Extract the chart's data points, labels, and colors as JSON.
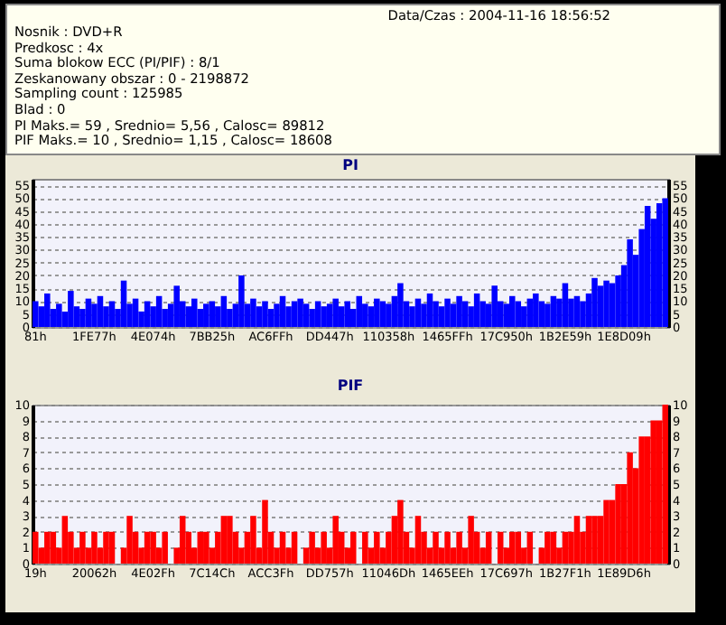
{
  "chart_data": [
    {
      "type": "other",
      "annotations": [
        "Data/Czas : 2004-11-16 18:56:52",
        "Nosnik : DVD+R",
        "Predkosc : 4x",
        "Suma blokow ECC (PI/PIF) : 8/1",
        "Zeskanowany obszar : 0 - 2198872",
        "Sampling count : 125985",
        "Blad : 0",
        "PI Maks.= 59 , Srednio= 5,56 , Calosc= 89812",
        "PIF Maks.= 10 , Srednio= 1,15 , Calosc= 18608"
      ]
    },
    {
      "type": "bar",
      "title": "PI",
      "color": "#0000ff",
      "categories": [
        "81h",
        null,
        null,
        null,
        null,
        null,
        null,
        null,
        null,
        null,
        "1FE77h",
        null,
        null,
        null,
        null,
        null,
        null,
        null,
        null,
        null,
        "4E074h",
        null,
        null,
        null,
        null,
        null,
        null,
        null,
        null,
        null,
        "7BB25h",
        null,
        null,
        null,
        null,
        null,
        null,
        null,
        null,
        null,
        "AC6FFh",
        null,
        null,
        null,
        null,
        null,
        null,
        null,
        null,
        null,
        "DD447h",
        null,
        null,
        null,
        null,
        null,
        null,
        null,
        null,
        null,
        "110358h",
        null,
        null,
        null,
        null,
        null,
        null,
        null,
        null,
        null,
        "1465FFh",
        null,
        null,
        null,
        null,
        null,
        null,
        null,
        null,
        null,
        "17C950h",
        null,
        null,
        null,
        null,
        null,
        null,
        null,
        null,
        null,
        "1B2E59h",
        null,
        null,
        null,
        null,
        null,
        null,
        null,
        null,
        null,
        "1E8D09h",
        null,
        null,
        null,
        null,
        null,
        null,
        null
      ],
      "values": [
        10,
        8,
        13,
        7,
        9,
        6,
        14,
        8,
        7,
        11,
        9,
        12,
        8,
        10,
        7,
        18,
        9,
        11,
        6,
        10,
        8,
        12,
        7,
        9,
        16,
        10,
        8,
        11,
        7,
        9,
        10,
        8,
        12,
        7,
        9,
        20,
        9,
        11,
        8,
        10,
        7,
        9,
        12,
        8,
        10,
        11,
        9,
        7,
        10,
        8,
        9,
        11,
        8,
        10,
        7,
        12,
        9,
        8,
        11,
        10,
        9,
        12,
        17,
        10,
        8,
        11,
        9,
        13,
        10,
        8,
        11,
        9,
        12,
        10,
        8,
        13,
        10,
        9,
        16,
        10,
        9,
        12,
        10,
        8,
        11,
        13,
        10,
        9,
        12,
        11,
        17,
        11,
        12,
        10,
        13,
        19,
        16,
        18,
        17,
        20,
        24,
        34,
        28,
        38,
        47,
        42,
        48,
        50
      ],
      "ylim": [
        0,
        57.5
      ],
      "yticks": [
        0,
        5,
        10,
        15,
        20,
        25,
        30,
        35,
        40,
        45,
        50,
        55
      ],
      "y2lim": [
        0,
        57.5
      ],
      "y2ticks": [
        0,
        5,
        10,
        15,
        20,
        25,
        30,
        35,
        40,
        45,
        50,
        55
      ],
      "grid": "y",
      "line_style": "dotted"
    },
    {
      "type": "bar",
      "title": "PIF",
      "color": "#ff0000",
      "categories": [
        "19h",
        null,
        null,
        null,
        null,
        null,
        null,
        null,
        null,
        null,
        "20062h",
        null,
        null,
        null,
        null,
        null,
        null,
        null,
        null,
        null,
        "4E02Fh",
        null,
        null,
        null,
        null,
        null,
        null,
        null,
        null,
        null,
        "7C14Ch",
        null,
        null,
        null,
        null,
        null,
        null,
        null,
        null,
        null,
        "ACC3Fh",
        null,
        null,
        null,
        null,
        null,
        null,
        null,
        null,
        null,
        "DD757h",
        null,
        null,
        null,
        null,
        null,
        null,
        null,
        null,
        null,
        "11046Dh",
        null,
        null,
        null,
        null,
        null,
        null,
        null,
        null,
        null,
        "1465EEh",
        null,
        null,
        null,
        null,
        null,
        null,
        null,
        null,
        null,
        "17C697h",
        null,
        null,
        null,
        null,
        null,
        null,
        null,
        null,
        null,
        "1B27F1h",
        null,
        null,
        null,
        null,
        null,
        null,
        null,
        null,
        null,
        "1E89D6h",
        null,
        null,
        null,
        null,
        null,
        null,
        null
      ],
      "values": [
        2,
        1,
        2,
        2,
        1,
        3,
        2,
        1,
        2,
        1,
        2,
        1,
        2,
        2,
        0,
        1,
        3,
        2,
        1,
        2,
        2,
        1,
        2,
        0,
        1,
        3,
        2,
        1,
        2,
        2,
        1,
        2,
        3,
        3,
        2,
        1,
        2,
        3,
        1,
        4,
        2,
        1,
        2,
        1,
        2,
        0,
        1,
        2,
        1,
        2,
        1,
        3,
        2,
        1,
        2,
        0,
        2,
        1,
        2,
        1,
        2,
        3,
        4,
        2,
        1,
        3,
        2,
        1,
        2,
        1,
        2,
        1,
        2,
        1,
        3,
        2,
        1,
        2,
        0,
        2,
        1,
        2,
        2,
        1,
        2,
        0,
        1,
        2,
        2,
        1,
        2,
        2,
        3,
        2,
        3,
        3,
        3,
        4,
        4,
        5,
        5,
        7,
        6,
        8,
        8,
        9,
        9,
        10
      ],
      "ylim": [
        0,
        10
      ],
      "yticks": [
        0,
        1,
        2,
        3,
        4,
        5,
        6,
        7,
        8,
        9,
        10
      ],
      "y2lim": [
        0,
        10
      ],
      "y2ticks": [
        0,
        1,
        2,
        3,
        4,
        5,
        6,
        7,
        8,
        9,
        10
      ],
      "grid": "y",
      "line_style": "dotted"
    }
  ]
}
